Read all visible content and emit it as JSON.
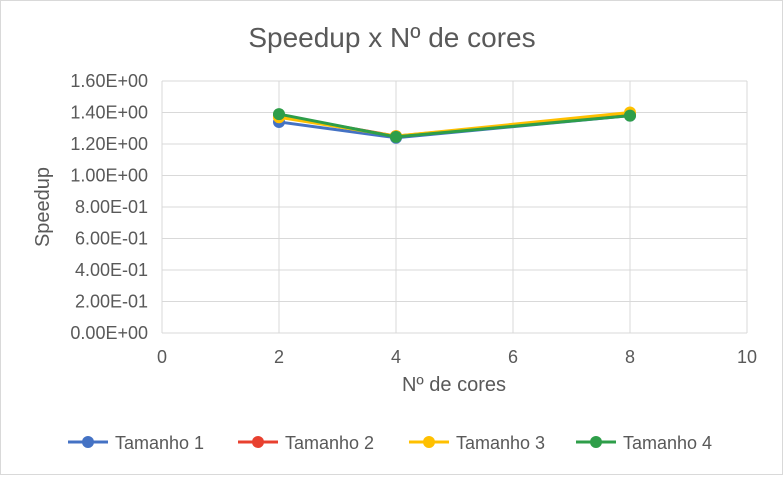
{
  "chart_data": {
    "type": "scatter",
    "title": "Speedup x Nº de cores",
    "xlabel": "Nº de cores",
    "ylabel": "Speedup",
    "xlim": [
      0,
      10
    ],
    "ylim": [
      0,
      1.6
    ],
    "x_ticks": [
      0,
      2,
      4,
      6,
      8,
      10
    ],
    "x_tick_labels": [
      "0",
      "2",
      "4",
      "6",
      "8",
      "10"
    ],
    "y_ticks": [
      0,
      0.2,
      0.4,
      0.6,
      0.8,
      1.0,
      1.2,
      1.4,
      1.6
    ],
    "y_tick_labels": [
      "0.00E+00",
      "2.00E-01",
      "4.00E-01",
      "6.00E-01",
      "8.00E-01",
      "1.00E+00",
      "1.20E+00",
      "1.40E+00",
      "1.60E+00"
    ],
    "grid": true,
    "legend_position": "bottom",
    "x": [
      2,
      4,
      8
    ],
    "series": [
      {
        "name": "Tamanho 1",
        "color": "#4472C4",
        "values": [
          1.34,
          1.24,
          1.38
        ]
      },
      {
        "name": "Tamanho 2",
        "color": "#E8402F",
        "values": [
          1.38,
          1.25,
          1.39
        ]
      },
      {
        "name": "Tamanho 3",
        "color": "#FFC000",
        "values": [
          1.37,
          1.25,
          1.4
        ]
      },
      {
        "name": "Tamanho 4",
        "color": "#2E9E49",
        "values": [
          1.39,
          1.245,
          1.38
        ]
      }
    ]
  }
}
